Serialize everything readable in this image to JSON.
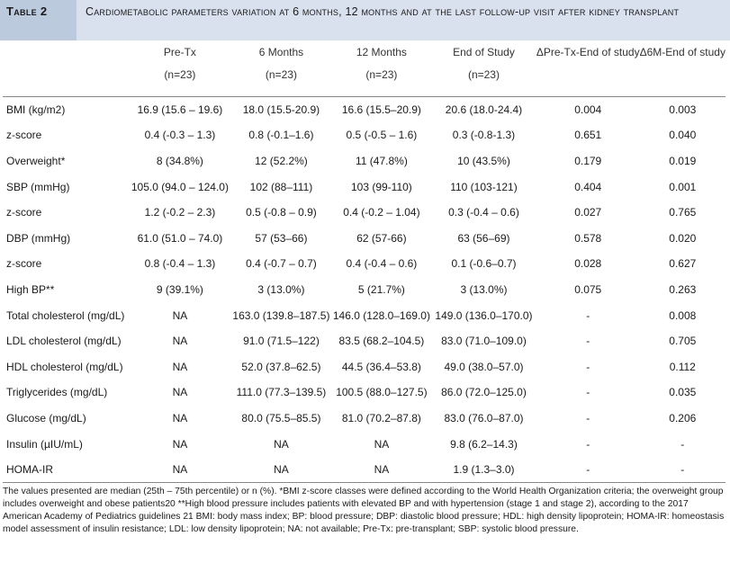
{
  "table": {
    "number": "Table 2",
    "caption": "Cardiometabolic parameters variation at 6 months, 12 months and at the last follow-up visit after kidney transplant",
    "columns": [
      {
        "label": "Pre-Tx",
        "sub": "(n=23)"
      },
      {
        "label": "6 Months",
        "sub": "(n=23)"
      },
      {
        "label": "12 Months",
        "sub": "(n=23)"
      },
      {
        "label": "End of Study",
        "sub": "(n=23)"
      },
      {
        "label": "ΔPre-Tx-End of study",
        "sub": ""
      },
      {
        "label": "Δ6M-End of study",
        "sub": ""
      }
    ],
    "rows": [
      {
        "param": "BMI (kg/m2)",
        "cells": [
          "16.9 (15.6 – 19.6)",
          "18.0 (15.5-20.9)",
          "16.6 (15.5–20.9)",
          "20.6 (18.0-24.4)",
          "0.004",
          "0.003"
        ]
      },
      {
        "param": "z-score",
        "cells": [
          "0.4 (-0.3 – 1.3)",
          "0.8 (-0.1–1.6)",
          "0.5 (-0.5 – 1.6)",
          "0.3 (-0.8-1.3)",
          "0.651",
          "0.040"
        ]
      },
      {
        "param": "Overweight*",
        "cells": [
          "8 (34.8%)",
          "12 (52.2%)",
          "11 (47.8%)",
          "10 (43.5%)",
          "0.179",
          "0.019"
        ]
      },
      {
        "param": "SBP (mmHg)",
        "cells": [
          "105.0 (94.0 – 124.0)",
          "102 (88–111)",
          "103 (99-110)",
          "110 (103-121)",
          "0.404",
          "0.001"
        ]
      },
      {
        "param": "z-score",
        "cells": [
          "1.2 (-0.2 – 2.3)",
          "0.5 (-0.8 – 0.9)",
          "0.4 (-0.2 – 1.04)",
          "0.3 (-0.4 – 0.6)",
          "0.027",
          "0.765"
        ]
      },
      {
        "param": "DBP (mmHg)",
        "cells": [
          "61.0 (51.0 – 74.0)",
          "57 (53–66)",
          "62 (57-66)",
          "63 (56–69)",
          "0.578",
          "0.020"
        ]
      },
      {
        "param": "z-score",
        "cells": [
          "0.8 (-0.4 – 1.3)",
          "0.4 (-0.7 – 0.7)",
          "0.4 (-0.4 – 0.6)",
          "0.1 (-0.6–0.7)",
          "0.028",
          "0.627"
        ]
      },
      {
        "param": "High BP**",
        "cells": [
          "9 (39.1%)",
          "3 (13.0%)",
          "5 (21.7%)",
          "3 (13.0%)",
          "0.075",
          "0.263"
        ]
      },
      {
        "param": "Total cholesterol (mg/dL)",
        "cells": [
          "NA",
          "163.0 (139.8–187.5)",
          "146.0 (128.0–169.0)",
          "149.0 (136.0–170.0)",
          "-",
          "0.008"
        ]
      },
      {
        "param": "LDL cholesterol (mg/dL)",
        "cells": [
          "NA",
          "91.0 (71.5–122)",
          "83.5 (68.2–104.5)",
          "83.0 (71.0–109.0)",
          "-",
          "0.705"
        ]
      },
      {
        "param": "HDL cholesterol (mg/dL)",
        "cells": [
          "NA",
          "52.0 (37.8–62.5)",
          "44.5 (36.4–53.8)",
          "49.0 (38.0–57.0)",
          "-",
          "0.112"
        ]
      },
      {
        "param": "Triglycerides (mg/dL)",
        "cells": [
          "NA",
          "111.0 (77.3–139.5)",
          "100.5 (88.0–127.5)",
          "86.0 (72.0–125.0)",
          "-",
          "0.035"
        ]
      },
      {
        "param": "Glucose (mg/dL)",
        "cells": [
          "NA",
          "80.0 (75.5–85.5)",
          "81.0 (70.2–87.8)",
          "83.0 (76.0–87.0)",
          "-",
          "0.206"
        ]
      },
      {
        "param": "Insulin (µIU/mL)",
        "cells": [
          "NA",
          "NA",
          "NA",
          "9.8 (6.2–14.3)",
          "-",
          "-"
        ]
      },
      {
        "param": "HOMA-IR",
        "cells": [
          "NA",
          "NA",
          "NA",
          "1.9 (1.3–3.0)",
          "-",
          "-"
        ]
      }
    ],
    "footnote": "The values presented are median (25th – 75th percentile) or n (%). *BMI z-score classes were defined according to the World Health Organization criteria; the overweight group includes overweight and obese patients20 **High blood pressure includes patients with elevated BP and with hypertension (stage 1 and stage 2), according to the 2017 American Academy of Pediatrics guidelines 21 BMI: body mass index; BP: blood pressure; DBP: diastolic blood pressure; HDL: high density lipoprotein; HOMA-IR: homeostasis model assessment of insulin resistance; LDL: low density lipoprotein; NA: not available; Pre-Tx: pre-transplant; SBP: systolic blood pressure."
  }
}
